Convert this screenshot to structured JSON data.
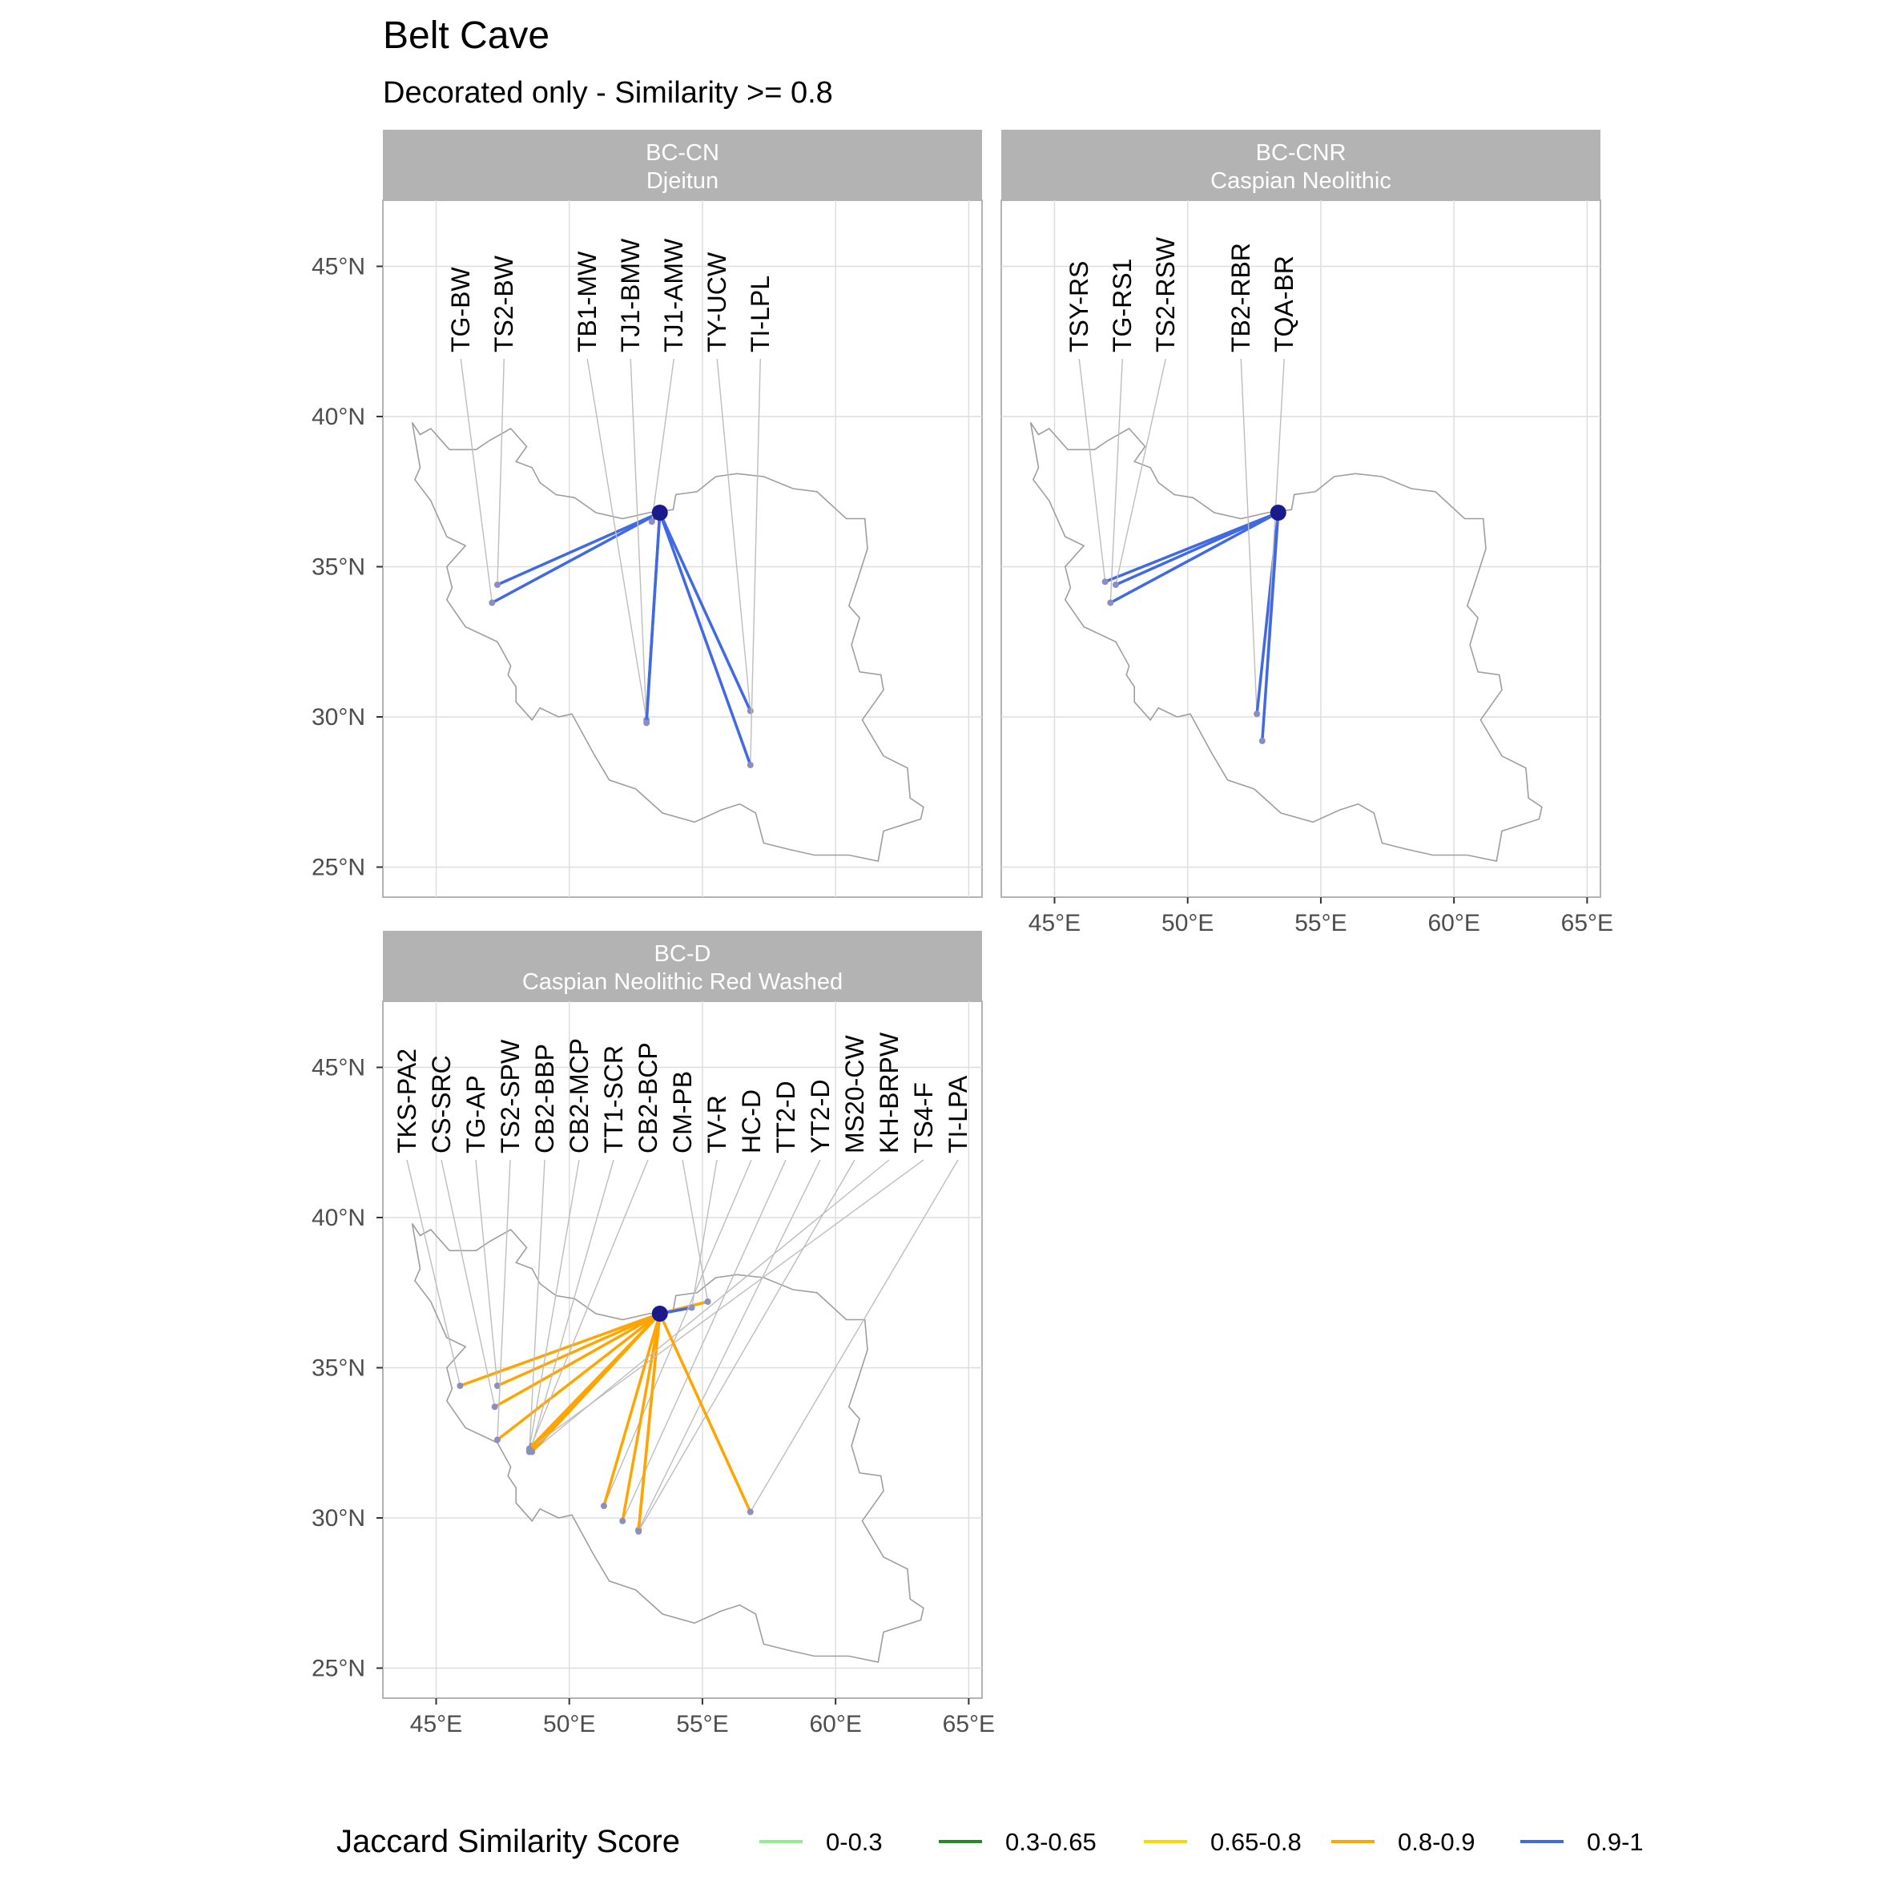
{
  "title": "Belt Cave",
  "subtitle": "Decorated only - Similarity >= 0.8",
  "chart_data": {
    "type": "map",
    "origin": {
      "name": "Belt Cave",
      "lon": 53.4,
      "lat": 36.8
    },
    "x_ticks": [
      "45°E",
      "50°E",
      "55°E",
      "60°E",
      "65°E"
    ],
    "x_tick_values": [
      45,
      50,
      55,
      60,
      65
    ],
    "y_ticks": [
      "25°N",
      "30°N",
      "35°N",
      "40°N",
      "45°N"
    ],
    "y_tick_values": [
      25,
      30,
      35,
      40,
      45
    ],
    "xlim": [
      43,
      65.5
    ],
    "ylim": [
      24,
      47.2
    ],
    "grid": true,
    "legend": {
      "title": "Jaccard Similarity Score",
      "position": "bottom",
      "items": [
        {
          "label": "0-0.3",
          "color": "#90EE90"
        },
        {
          "label": "0.3-0.65",
          "color": "#228B22"
        },
        {
          "label": "0.65-0.8",
          "color": "#FFD700"
        },
        {
          "label": "0.8-0.9",
          "color": "#FFA500"
        },
        {
          "label": "0.9-1",
          "color": "#4169E1"
        }
      ]
    },
    "panels": [
      {
        "strip_line1": "BC-CN",
        "strip_line2": "Djeitun",
        "sites": [
          {
            "label": "TG-BW",
            "lon": 47.1,
            "lat": 33.8,
            "score": "0.9-1"
          },
          {
            "label": "TS2-BW",
            "lon": 47.3,
            "lat": 34.4,
            "score": "0.9-1"
          },
          {
            "label": "TB1-MW",
            "lon": 52.9,
            "lat": 29.9,
            "score": "0.9-1"
          },
          {
            "label": "TJ1-BMW",
            "lon": 52.9,
            "lat": 29.8,
            "score": "0.9-1"
          },
          {
            "label": "TJ1-AMW",
            "lon": 53.1,
            "lat": 36.5,
            "score": "0.9-1"
          },
          {
            "label": "TY-UCW",
            "lon": 56.8,
            "lat": 30.2,
            "score": "0.9-1"
          },
          {
            "label": "TI-LPL",
            "lon": 56.8,
            "lat": 28.4,
            "score": "0.9-1"
          }
        ]
      },
      {
        "strip_line1": "BC-CNR",
        "strip_line2": "Caspian Neolithic",
        "sites": [
          {
            "label": "TSY-RS",
            "lon": 46.9,
            "lat": 34.5,
            "score": "0.9-1"
          },
          {
            "label": "TG-RS1",
            "lon": 47.1,
            "lat": 33.8,
            "score": "0.9-1"
          },
          {
            "label": "TS2-RSW",
            "lon": 47.3,
            "lat": 34.4,
            "score": "0.9-1"
          },
          {
            "label": "TB2-RBR",
            "lon": 52.6,
            "lat": 30.1,
            "score": "0.9-1"
          },
          {
            "label": "TQA-BR",
            "lon": 52.8,
            "lat": 29.2,
            "score": "0.9-1"
          }
        ]
      },
      {
        "strip_line1": "BC-D",
        "strip_line2": "Caspian Neolithic Red Washed",
        "sites": [
          {
            "label": "TKS-PA2",
            "lon": 45.9,
            "lat": 34.4,
            "score": "0.8-0.9"
          },
          {
            "label": "CS-SRC",
            "lon": 47.2,
            "lat": 33.7,
            "score": "0.8-0.9"
          },
          {
            "label": "TG-AP",
            "lon": 47.3,
            "lat": 34.4,
            "score": "0.8-0.9"
          },
          {
            "label": "TS2-SPW",
            "lon": 47.3,
            "lat": 32.6,
            "score": "0.8-0.9"
          },
          {
            "label": "CB2-BBP",
            "lon": 48.5,
            "lat": 32.2,
            "score": "0.8-0.9"
          },
          {
            "label": "CB2-MCP",
            "lon": 48.5,
            "lat": 32.3,
            "score": "0.8-0.9"
          },
          {
            "label": "TT1-SCR",
            "lon": 48.6,
            "lat": 32.4,
            "score": "0.8-0.9"
          },
          {
            "label": "CB2-BCP",
            "lon": 48.5,
            "lat": 32.25,
            "score": "0.8-0.9"
          },
          {
            "label": "CM-PB",
            "lon": 55.2,
            "lat": 37.2,
            "score": "0.8-0.9"
          },
          {
            "label": "TV-R",
            "lon": 54.6,
            "lat": 37.0,
            "score": "0.9-1"
          },
          {
            "label": "HC-D",
            "lon": 51.3,
            "lat": 30.4,
            "score": "0.8-0.9"
          },
          {
            "label": "TT2-D",
            "lon": 52.0,
            "lat": 29.9,
            "score": "0.8-0.9"
          },
          {
            "label": "YT2-D",
            "lon": 52.6,
            "lat": 29.6,
            "score": "0.8-0.9"
          },
          {
            "label": "MS20-CW",
            "lon": 52.6,
            "lat": 29.55,
            "score": "0.8-0.9"
          },
          {
            "label": "KH-BRPW",
            "lon": 48.6,
            "lat": 32.2,
            "score": "0.8-0.9"
          },
          {
            "label": "TS4-F",
            "lon": 48.5,
            "lat": 32.3,
            "score": "0.8-0.9"
          },
          {
            "label": "TI-LPA",
            "lon": 56.8,
            "lat": 30.2,
            "score": "0.8-0.9"
          }
        ]
      }
    ]
  }
}
